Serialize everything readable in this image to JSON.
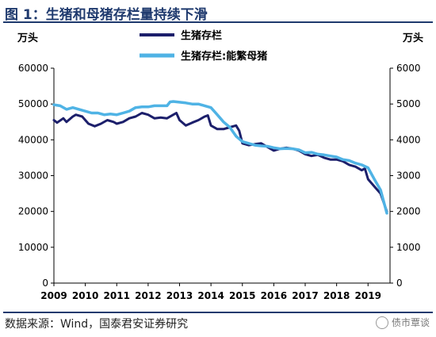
{
  "figure": {
    "title": "图 1：生猪和母猪存栏量持续下滑",
    "source": "数据来源：Wind，国泰君安证券研究",
    "watermark": "债市覃谈"
  },
  "colors": {
    "title": "#1f3a6e",
    "series1": "#1c1f6b",
    "series2": "#4fb3e5"
  },
  "chart_data": {
    "type": "line",
    "left_unit": "万头",
    "right_unit": "万头",
    "legend_position": "top-center",
    "grid": false,
    "xlim": [
      2009,
      2019.7
    ],
    "x_ticks": [
      "2009",
      "2010",
      "2011",
      "2012",
      "2013",
      "2014",
      "2015",
      "2016",
      "2017",
      "2018",
      "2019"
    ],
    "y_left": {
      "lim": [
        0,
        60000
      ],
      "ticks": [
        "0",
        "10000",
        "20000",
        "30000",
        "40000",
        "50000",
        "60000"
      ]
    },
    "y_right": {
      "lim": [
        0,
        6000
      ],
      "ticks": [
        "0",
        "1000",
        "2000",
        "3000",
        "4000",
        "5000",
        "6000"
      ]
    },
    "series": [
      {
        "name": "生猪存栏",
        "axis": "left",
        "x": [
          2009.0,
          2009.1,
          2009.3,
          2009.4,
          2009.6,
          2009.7,
          2009.9,
          2010.0,
          2010.1,
          2010.3,
          2010.5,
          2010.7,
          2010.9,
          2011.0,
          2011.2,
          2011.4,
          2011.6,
          2011.8,
          2012.0,
          2012.2,
          2012.4,
          2012.6,
          2012.8,
          2012.9,
          2013.0,
          2013.2,
          2013.4,
          2013.6,
          2013.8,
          2013.9,
          2014.0,
          2014.2,
          2014.4,
          2014.6,
          2014.8,
          2014.9,
          2015.0,
          2015.2,
          2015.4,
          2015.6,
          2015.8,
          2016.0,
          2016.2,
          2016.4,
          2016.6,
          2016.8,
          2017.0,
          2017.2,
          2017.4,
          2017.6,
          2017.8,
          2018.0,
          2018.2,
          2018.4,
          2018.6,
          2018.8,
          2018.9,
          2019.0,
          2019.2,
          2019.4,
          2019.6
        ],
        "values": [
          45500,
          44800,
          46000,
          45000,
          46500,
          47000,
          46500,
          45500,
          44500,
          43800,
          44500,
          45500,
          45000,
          44500,
          45000,
          46000,
          46500,
          47500,
          47000,
          46000,
          46200,
          46000,
          47000,
          47500,
          45500,
          44000,
          44800,
          45500,
          46500,
          46800,
          44000,
          43000,
          43000,
          43500,
          44000,
          42500,
          39000,
          38500,
          38800,
          39000,
          38000,
          37000,
          37500,
          37800,
          37500,
          37000,
          36000,
          35500,
          35800,
          35000,
          34500,
          34500,
          34000,
          33000,
          32500,
          31500,
          32000,
          29000,
          27000,
          25000,
          20000
        ]
      },
      {
        "name": "生猪存栏:能繁母猪",
        "axis": "right",
        "x": [
          2009.0,
          2009.2,
          2009.4,
          2009.6,
          2009.8,
          2010.0,
          2010.2,
          2010.4,
          2010.6,
          2010.8,
          2011.0,
          2011.2,
          2011.4,
          2011.6,
          2011.8,
          2012.0,
          2012.2,
          2012.4,
          2012.6,
          2012.7,
          2012.8,
          2013.0,
          2013.2,
          2013.4,
          2013.6,
          2013.8,
          2014.0,
          2014.2,
          2014.4,
          2014.6,
          2014.8,
          2015.0,
          2015.2,
          2015.4,
          2015.6,
          2015.8,
          2016.0,
          2016.2,
          2016.4,
          2016.6,
          2016.8,
          2017.0,
          2017.2,
          2017.4,
          2017.6,
          2017.8,
          2018.0,
          2018.2,
          2018.4,
          2018.6,
          2018.8,
          2019.0,
          2019.2,
          2019.4,
          2019.6
        ],
        "values": [
          4980,
          4950,
          4850,
          4900,
          4850,
          4800,
          4750,
          4750,
          4700,
          4720,
          4700,
          4750,
          4800,
          4900,
          4920,
          4920,
          4950,
          4950,
          4950,
          5060,
          5070,
          5050,
          5030,
          5000,
          5000,
          4950,
          4900,
          4700,
          4500,
          4350,
          4100,
          3950,
          3900,
          3850,
          3830,
          3820,
          3780,
          3750,
          3760,
          3750,
          3720,
          3640,
          3650,
          3600,
          3580,
          3550,
          3520,
          3450,
          3420,
          3350,
          3300,
          3220,
          2900,
          2600,
          1950
        ]
      }
    ]
  }
}
